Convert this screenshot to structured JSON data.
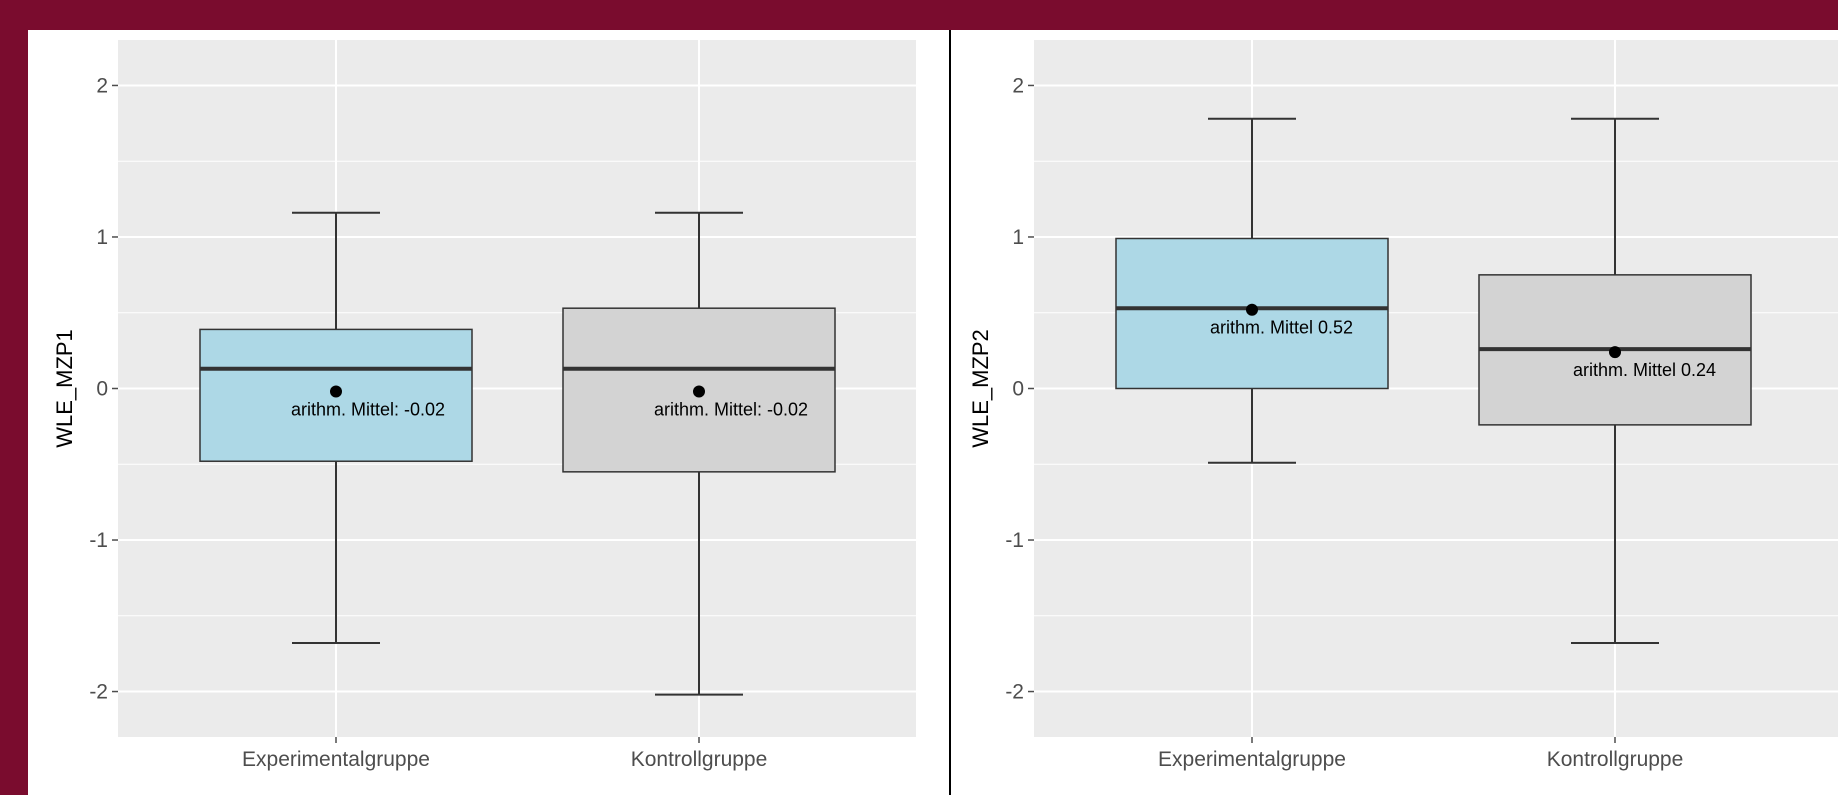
{
  "colors": {
    "background_frame": "#7a0c2e",
    "panel": "#ebebeb",
    "grid": "#ffffff",
    "experimental_fill": "#add8e6",
    "control_fill": "#d3d3d3",
    "box_stroke": "#333333"
  },
  "chart_data": [
    {
      "type": "box",
      "xlabel": "",
      "ylabel": "WLE_MZP1",
      "ylim": [
        -2.3,
        2.3
      ],
      "yticks": [
        "-2",
        "-1",
        "0",
        "1",
        "2"
      ],
      "categories": [
        "Experimentalgruppe",
        "Kontrollgruppe"
      ],
      "boxes": [
        {
          "category": "Experimentalgruppe",
          "fill": "#add8e6",
          "whisker_low": -1.68,
          "q1": -0.48,
          "median": 0.13,
          "q3": 0.39,
          "whisker_high": 1.16,
          "mean": -0.02,
          "mean_label": "arithm. Mittel: -0.02"
        },
        {
          "category": "Kontrollgruppe",
          "fill": "#d3d3d3",
          "whisker_low": -2.02,
          "q1": -0.55,
          "median": 0.13,
          "q3": 0.53,
          "whisker_high": 1.16,
          "mean": -0.02,
          "mean_label": "arithm. Mittel: -0.02"
        }
      ]
    },
    {
      "type": "box",
      "xlabel": "",
      "ylabel": "WLE_MZP2",
      "ylim": [
        -2.3,
        2.3
      ],
      "yticks": [
        "-2",
        "-1",
        "0",
        "1",
        "2"
      ],
      "categories": [
        "Experimentalgruppe",
        "Kontrollgruppe"
      ],
      "boxes": [
        {
          "category": "Experimentalgruppe",
          "fill": "#add8e6",
          "whisker_low": -0.49,
          "q1": 0.0,
          "median": 0.53,
          "q3": 0.99,
          "whisker_high": 1.78,
          "mean": 0.52,
          "mean_label": "arithm. Mittel 0.52"
        },
        {
          "category": "Kontrollgruppe",
          "fill": "#d3d3d3",
          "whisker_low": -1.68,
          "q1": -0.24,
          "median": 0.26,
          "q3": 0.75,
          "whisker_high": 1.78,
          "mean": 0.24,
          "mean_label": "arithm. Mittel 0.24"
        }
      ]
    }
  ]
}
